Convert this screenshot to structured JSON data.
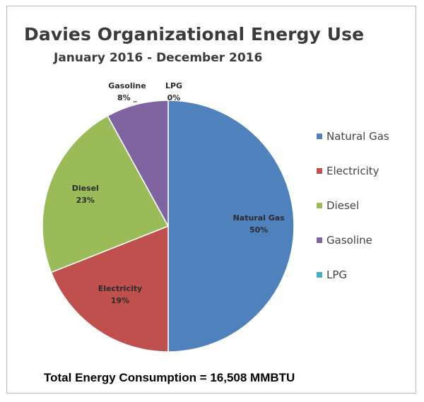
{
  "chart_data": {
    "type": "pie",
    "title": "Davies Organizational Energy Use",
    "subtitle": "January 2016 - December 2016",
    "slices": [
      {
        "name": "Natural Gas",
        "value": 50,
        "label": "50%",
        "color": "#4f81bd"
      },
      {
        "name": "Electricity",
        "value": 19,
        "label": "19%",
        "color": "#c0504d"
      },
      {
        "name": "Diesel",
        "value": 23,
        "label": "23%",
        "color": "#9bbb59"
      },
      {
        "name": "Gasoline",
        "value": 8,
        "label": "8%",
        "color": "#8064a2"
      },
      {
        "name": "LPG",
        "value": 0,
        "label": "0%",
        "color": "#4bacc6"
      }
    ],
    "legend_position": "right",
    "footer": "Total Energy Consumption = 16,508 MMBTU"
  }
}
